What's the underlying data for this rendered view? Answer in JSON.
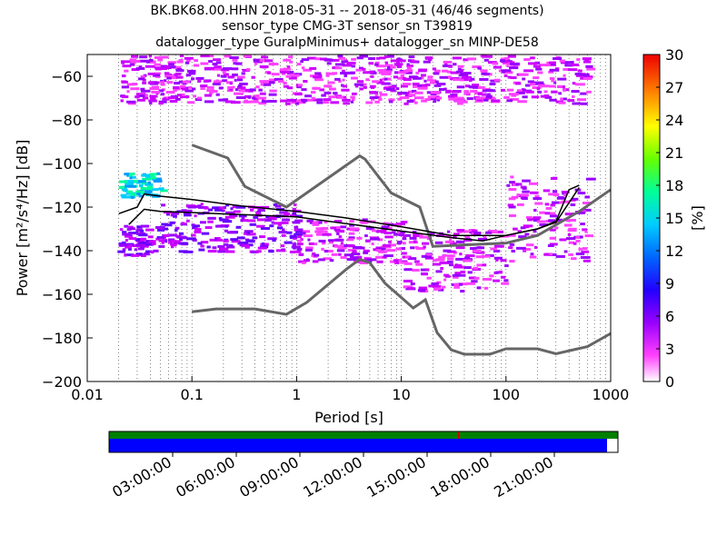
{
  "title_lines": [
    "BK.BK68.00.HHN   2018-05-31 -- 2018-05-31  (46/46 segments)",
    "sensor_type CMG-3T sensor_sn T39819",
    "datalogger_type GuralpMinimus+ datalogger_sn MINP-DE58"
  ],
  "colorbar": {
    "label": "[%]",
    "ticks": [
      "0",
      "3",
      "6",
      "9",
      "12",
      "15",
      "18",
      "21",
      "24",
      "27",
      "30"
    ],
    "range": [
      0,
      30
    ]
  },
  "time_axis": {
    "ticks": [
      "03:00:00",
      "06:00:00",
      "09:00:00",
      "12:00:00",
      "15:00:00",
      "18:00:00",
      "21:00:00"
    ],
    "coverage_colors": {
      "top": "#008000",
      "bottom": "#0000ff",
      "gap_marker": "#cc0000"
    }
  },
  "chart_data": {
    "type": "heatmap",
    "xlabel": "Period [s]",
    "ylabel": "Power [m²/s⁴/Hz] [dB]",
    "xscale": "log",
    "xlim": [
      0.01,
      1000
    ],
    "ylim": [
      -200,
      -50
    ],
    "x_ticks": [
      "0.01",
      "0.1",
      "1",
      "10",
      "100",
      "1000"
    ],
    "y_ticks": [
      "−60",
      "−80",
      "−100",
      "−120",
      "−140",
      "−160",
      "−180",
      "−200"
    ],
    "grid": "vertical dotted",
    "series": [
      {
        "role": "noise-model-high",
        "color": "#666666",
        "points": [
          [
            0.1,
            -91.5
          ],
          [
            0.22,
            -97.5
          ],
          [
            0.32,
            -110.5
          ],
          [
            0.8,
            -120
          ],
          [
            4,
            -96.5
          ],
          [
            4.5,
            -98
          ],
          [
            8,
            -113.5
          ],
          [
            15,
            -120
          ],
          [
            20,
            -138
          ],
          [
            100,
            -136.5
          ],
          [
            200,
            -133
          ],
          [
            500,
            -122
          ],
          [
            1000,
            -112
          ]
        ]
      },
      {
        "role": "noise-model-low",
        "color": "#666666",
        "points": [
          [
            0.1,
            -168
          ],
          [
            0.17,
            -166.7
          ],
          [
            0.4,
            -166.7
          ],
          [
            0.8,
            -169.2
          ],
          [
            1.25,
            -163.7
          ],
          [
            3,
            -148.4
          ],
          [
            4,
            -144
          ],
          [
            5,
            -145.5
          ],
          [
            7,
            -155
          ],
          [
            11,
            -163.2
          ],
          [
            13,
            -166.3
          ],
          [
            17,
            -162.5
          ],
          [
            22,
            -177.6
          ],
          [
            30,
            -185.5
          ],
          [
            40,
            -187.5
          ],
          [
            70,
            -187.5
          ],
          [
            100,
            -185
          ],
          [
            200,
            -185
          ],
          [
            300,
            -187.3
          ],
          [
            600,
            -184
          ],
          [
            1000,
            -178
          ]
        ]
      },
      {
        "role": "ppsd-mode",
        "color": "#000000",
        "points": [
          [
            0.02,
            -123
          ],
          [
            0.03,
            -120
          ],
          [
            0.035,
            -114
          ],
          [
            0.05,
            -115
          ],
          [
            0.1,
            -116.5
          ],
          [
            0.3,
            -119.5
          ],
          [
            1,
            -122
          ],
          [
            3,
            -125
          ],
          [
            10,
            -129
          ],
          [
            30,
            -133
          ],
          [
            100,
            -133
          ],
          [
            200,
            -130
          ],
          [
            300,
            -126.5
          ],
          [
            400,
            -112
          ],
          [
            500,
            -110
          ]
        ]
      },
      {
        "role": "ppsd-mean",
        "color": "#000000",
        "points": [
          [
            0.025,
            -128
          ],
          [
            0.035,
            -121
          ],
          [
            0.05,
            -122
          ],
          [
            0.1,
            -122.5
          ],
          [
            1,
            -124.5
          ],
          [
            10,
            -131
          ],
          [
            30,
            -134
          ],
          [
            60,
            -135.5
          ],
          [
            100,
            -133
          ],
          [
            200,
            -130
          ],
          [
            300,
            -127
          ],
          [
            500,
            -111
          ]
        ]
      }
    ],
    "density_bands": [
      {
        "x_range": [
          0.019,
          0.05
        ],
        "db_range": [
          -142,
          -128
        ],
        "pct": 6
      },
      {
        "x_range": [
          0.05,
          1
        ],
        "db_range": [
          -140,
          -118
        ],
        "pct": 5
      },
      {
        "x_range": [
          1,
          10
        ],
        "db_range": [
          -145,
          -125
        ],
        "pct": 4
      },
      {
        "x_range": [
          10,
          100
        ],
        "db_range": [
          -158,
          -130
        ],
        "pct": 4
      },
      {
        "x_range": [
          100,
          600
        ],
        "db_range": [
          -145,
          -105
        ],
        "pct": 3
      },
      {
        "x_range": [
          0.02,
          600
        ],
        "db_range": [
          -72,
          -50
        ],
        "pct": 2
      },
      {
        "x_range": [
          0.02,
          0.05
        ],
        "db_range": [
          -115,
          -104
        ],
        "pct": 20
      }
    ]
  }
}
